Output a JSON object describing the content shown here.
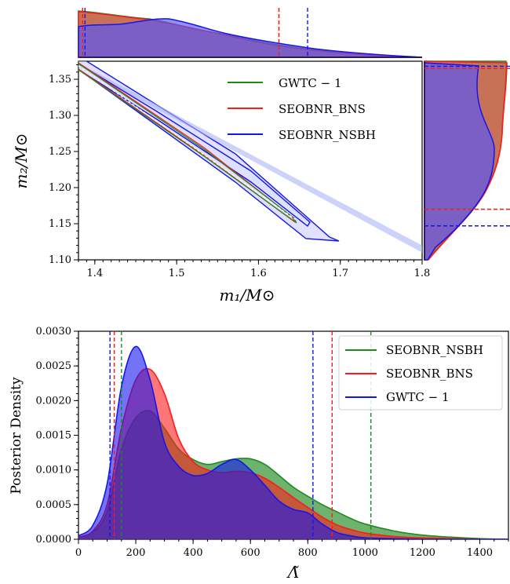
{
  "chart_data": [
    {
      "type": "scatter",
      "panel": "mass-contours",
      "xlabel": "m₁/M⊙",
      "ylabel": "m₂/M⊙",
      "xlim": [
        1.38,
        1.8
      ],
      "ylim": [
        1.1,
        1.375
      ],
      "xticks": [
        "1.4",
        "1.5",
        "1.6",
        "1.7",
        "1.8"
      ],
      "yticks": [
        "1.10",
        "1.15",
        "1.20",
        "1.25",
        "1.30",
        "1.35"
      ],
      "legend_position": "top-right",
      "legend": [
        "GWTC − 1",
        "SEOBNR_BNS",
        "SEOBNR_NSBH"
      ],
      "series": [
        {
          "name": "GWTC − 1",
          "color": "#1e8a1e",
          "x_max": 1.65,
          "y_min": 1.155
        },
        {
          "name": "SEOBNR_BNS",
          "color": "#ff1a1a",
          "x_max": 1.655,
          "y_min": 1.153
        },
        {
          "name": "SEOBNR_NSBH",
          "color": "#1515ee",
          "x_max": 1.69,
          "y_min": 1.13
        }
      ],
      "m1_marginal": {
        "credible_lines": [
          {
            "series": "GWTC − 1",
            "x": [
              1.385,
              1.625
            ]
          },
          {
            "series": "SEOBNR_BNS",
            "x": [
              1.385,
              1.625
            ]
          },
          {
            "series": "SEOBNR_NSBH",
            "x": [
              1.388,
              1.66
            ]
          }
        ]
      },
      "m2_marginal": {
        "credible_lines": [
          {
            "series": "GWTC − 1",
            "y": [
              1.17,
              1.365
            ]
          },
          {
            "series": "SEOBNR_BNS",
            "y": [
              1.17,
              1.365
            ]
          },
          {
            "series": "SEOBNR_NSBH",
            "y": [
              1.147,
              1.368
            ]
          }
        ]
      }
    },
    {
      "type": "area",
      "panel": "lambda-posterior",
      "xlabel": "Λ̃",
      "ylabel": "Posterior Density",
      "xlim": [
        0,
        1500
      ],
      "ylim": [
        0,
        0.003
      ],
      "xticks": [
        "0",
        "200",
        "400",
        "600",
        "800",
        "1000",
        "1200",
        "1400"
      ],
      "yticks": [
        "0.0000",
        "0.0005",
        "0.0010",
        "0.0015",
        "0.0020",
        "0.0025",
        "0.0030"
      ],
      "legend_position": "top-right",
      "legend": [
        "SEOBNR_NSBH",
        "SEOBNR_BNS",
        "GWTC − 1"
      ],
      "x": [
        0,
        50,
        100,
        150,
        200,
        250,
        300,
        350,
        400,
        450,
        500,
        550,
        600,
        650,
        700,
        750,
        800,
        850,
        900,
        950,
        1000,
        1100,
        1200,
        1300,
        1400,
        1500
      ],
      "series": [
        {
          "name": "SEOBNR_NSBH",
          "color": "#1e8a1e",
          "credible_x": [
            150,
            1020
          ],
          "values": [
            3e-05,
            0.0001,
            0.0004,
            0.0013,
            0.00175,
            0.00185,
            0.0016,
            0.0013,
            0.00115,
            0.00108,
            0.00112,
            0.00116,
            0.00116,
            0.00108,
            0.00092,
            0.00075,
            0.00062,
            0.0005,
            0.0004,
            0.0003,
            0.00022,
            0.00012,
            6e-05,
            3e-05,
            1e-05,
            0.0
          ]
        },
        {
          "name": "SEOBNR_BNS",
          "color": "#ff1a1a",
          "credible_x": [
            125,
            885
          ],
          "values": [
            3e-05,
            0.00012,
            0.0005,
            0.0016,
            0.0023,
            0.00245,
            0.0021,
            0.00145,
            0.00112,
            0.001,
            0.00096,
            0.00098,
            0.00096,
            0.00088,
            0.00075,
            0.0006,
            0.00046,
            0.00032,
            0.00021,
            0.00014,
            9e-05,
            4e-05,
            2e-05,
            1e-05,
            0.0,
            0.0
          ]
        },
        {
          "name": "GWTC − 1",
          "color": "#1515ee",
          "credible_x": [
            110,
            818
          ],
          "values": [
            5e-05,
            0.0002,
            0.0008,
            0.0022,
            0.00278,
            0.0023,
            0.0014,
            0.00105,
            0.00092,
            0.00095,
            0.00108,
            0.00115,
            0.001,
            0.00078,
            0.00055,
            0.00043,
            0.00038,
            0.00022,
            0.0001,
            5e-05,
            2e-05,
            1e-05,
            0.0,
            0.0,
            0.0,
            0.0
          ]
        }
      ]
    }
  ]
}
